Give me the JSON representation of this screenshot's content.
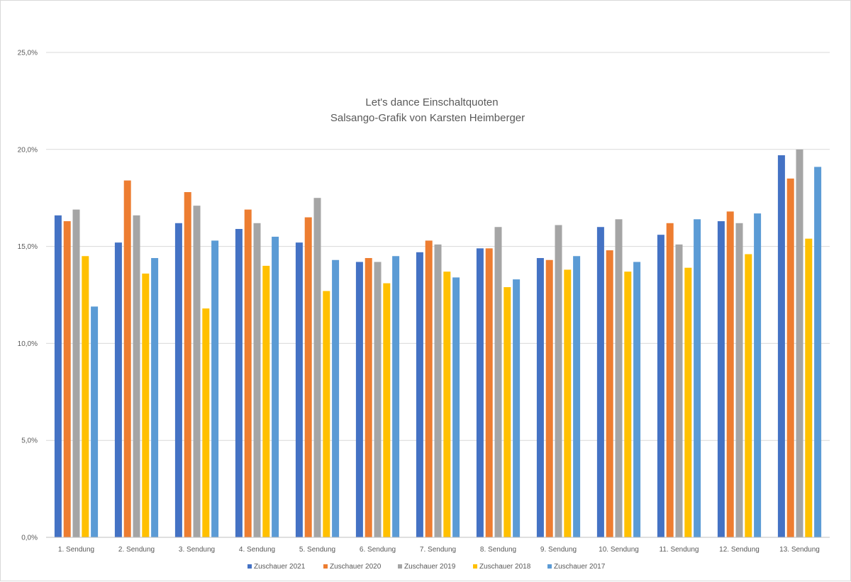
{
  "chart_data": {
    "type": "bar",
    "title": "Let's dance Einschaltquoten",
    "subtitle": "Salsango-Grafik von Karsten Heimberger",
    "xlabel": "",
    "ylabel": "",
    "ylim": [
      0,
      25
    ],
    "yticks": [
      0,
      5,
      10,
      15,
      20,
      25
    ],
    "ytick_labels": [
      "0,0%",
      "5,0%",
      "10,0%",
      "15,0%",
      "20,0%",
      "25,0%"
    ],
    "grid": true,
    "legend_position": "bottom",
    "categories": [
      "1. Sendung",
      "2. Sendung",
      "3. Sendung",
      "4. Sendung",
      "5. Sendung",
      "6. Sendung",
      "7. Sendung",
      "8. Sendung",
      "9. Sendung",
      "10. Sendung",
      "11. Sendung",
      "12. Sendung",
      "13. Sendung"
    ],
    "series": [
      {
        "name": "Zuschauer 2021",
        "color": "#4472c4",
        "values": [
          16.6,
          15.2,
          16.2,
          15.9,
          15.2,
          14.2,
          14.7,
          14.9,
          14.4,
          16.0,
          15.6,
          16.3,
          19.7
        ]
      },
      {
        "name": "Zuschauer 2020",
        "color": "#ed7d31",
        "values": [
          16.3,
          18.4,
          17.8,
          16.9,
          16.5,
          14.4,
          15.3,
          14.9,
          14.3,
          14.8,
          16.2,
          16.8,
          18.5
        ]
      },
      {
        "name": "Zuschauer 2019",
        "color": "#a5a5a5",
        "values": [
          16.9,
          16.6,
          17.1,
          16.2,
          17.5,
          14.2,
          15.1,
          16.0,
          16.1,
          16.4,
          15.1,
          16.2,
          20.0
        ]
      },
      {
        "name": "Zuschauer 2018",
        "color": "#ffc000",
        "values": [
          14.5,
          13.6,
          11.8,
          14.0,
          12.7,
          13.1,
          13.7,
          12.9,
          13.8,
          13.7,
          13.9,
          14.6,
          15.4
        ]
      },
      {
        "name": "Zuschauer 2017",
        "color": "#5b9bd5",
        "values": [
          11.9,
          14.4,
          15.3,
          15.5,
          14.3,
          14.5,
          13.4,
          13.3,
          14.5,
          14.2,
          16.4,
          16.7,
          19.1
        ]
      }
    ]
  }
}
